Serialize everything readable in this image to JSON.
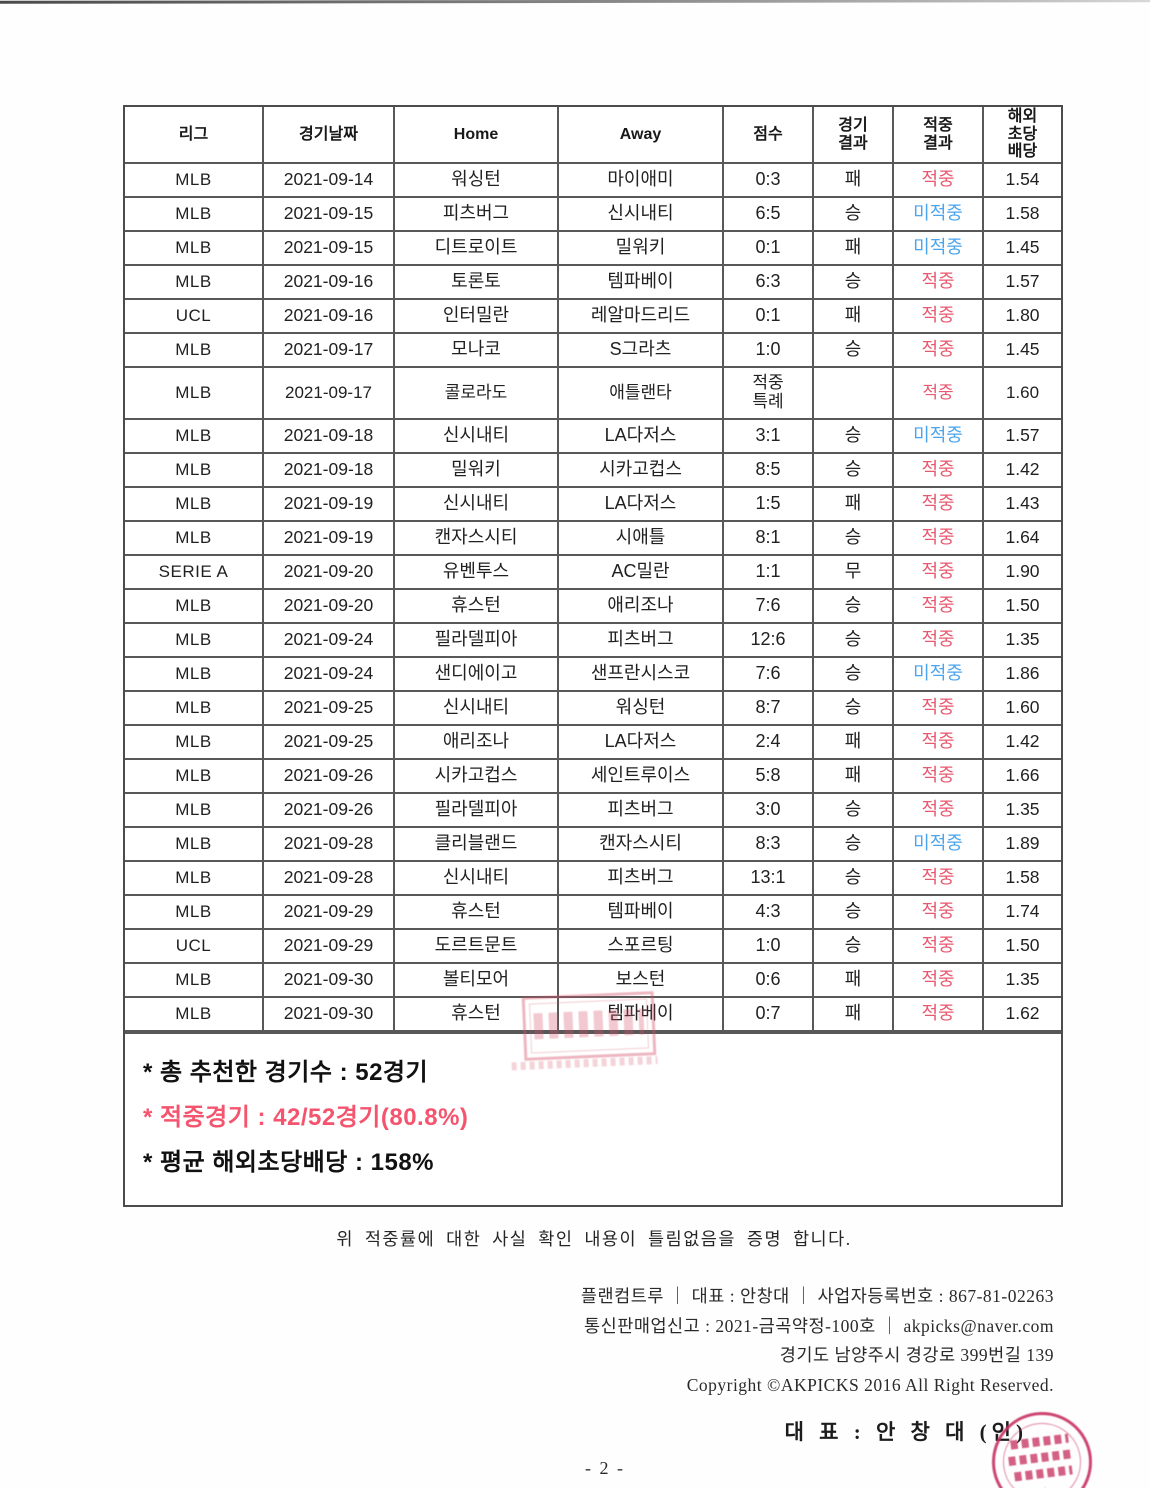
{
  "colors": {
    "hit": "#e8596f",
    "miss": "#4aa4ee",
    "summary_highlight": "#f4546e",
    "stamp": "#c73060"
  },
  "labels": {
    "hit": "적중",
    "miss": "미적중"
  },
  "table": {
    "headers": [
      "리그",
      "경기날짜",
      "Home",
      "Away",
      "점수",
      "경기\n결과",
      "적중\n결과",
      "해외\n초당\n배당"
    ],
    "rows": [
      {
        "league": "MLB",
        "date": "2021-09-14",
        "home": "워싱턴",
        "away": "마이애미",
        "score": "0:3",
        "result": "패",
        "hit": "적중",
        "odds": "1.54"
      },
      {
        "league": "MLB",
        "date": "2021-09-15",
        "home": "피츠버그",
        "away": "신시내티",
        "score": "6:5",
        "result": "승",
        "hit": "미적중",
        "odds": "1.58"
      },
      {
        "league": "MLB",
        "date": "2021-09-15",
        "home": "디트로이트",
        "away": "밀워키",
        "score": "0:1",
        "result": "패",
        "hit": "미적중",
        "odds": "1.45"
      },
      {
        "league": "MLB",
        "date": "2021-09-16",
        "home": "토론토",
        "away": "템파베이",
        "score": "6:3",
        "result": "승",
        "hit": "적중",
        "odds": "1.57"
      },
      {
        "league": "UCL",
        "date": "2021-09-16",
        "home": "인터밀란",
        "away": "레알마드리드",
        "score": "0:1",
        "result": "패",
        "hit": "적중",
        "odds": "1.80"
      },
      {
        "league": "MLB",
        "date": "2021-09-17",
        "home": "모나코",
        "away": "S그라츠",
        "score": "1:0",
        "result": "승",
        "hit": "적중",
        "odds": "1.45"
      },
      {
        "league": "MLB",
        "date": "2021-09-17",
        "home": "콜로라도",
        "away": "애틀랜타",
        "score": "적중\n특례",
        "result": "",
        "hit": "적중",
        "odds": "1.60"
      },
      {
        "league": "MLB",
        "date": "2021-09-18",
        "home": "신시내티",
        "away": "LA다저스",
        "score": "3:1",
        "result": "승",
        "hit": "미적중",
        "odds": "1.57"
      },
      {
        "league": "MLB",
        "date": "2021-09-18",
        "home": "밀워키",
        "away": "시카고컵스",
        "score": "8:5",
        "result": "승",
        "hit": "적중",
        "odds": "1.42"
      },
      {
        "league": "MLB",
        "date": "2021-09-19",
        "home": "신시내티",
        "away": "LA다저스",
        "score": "1:5",
        "result": "패",
        "hit": "적중",
        "odds": "1.43"
      },
      {
        "league": "MLB",
        "date": "2021-09-19",
        "home": "캔자스시티",
        "away": "시애틀",
        "score": "8:1",
        "result": "승",
        "hit": "적중",
        "odds": "1.64"
      },
      {
        "league": "SERIE A",
        "date": "2021-09-20",
        "home": "유벤투스",
        "away": "AC밀란",
        "score": "1:1",
        "result": "무",
        "hit": "적중",
        "odds": "1.90"
      },
      {
        "league": "MLB",
        "date": "2021-09-20",
        "home": "휴스턴",
        "away": "애리조나",
        "score": "7:6",
        "result": "승",
        "hit": "적중",
        "odds": "1.50"
      },
      {
        "league": "MLB",
        "date": "2021-09-24",
        "home": "필라델피아",
        "away": "피츠버그",
        "score": "12:6",
        "result": "승",
        "hit": "적중",
        "odds": "1.35"
      },
      {
        "league": "MLB",
        "date": "2021-09-24",
        "home": "샌디에이고",
        "away": "샌프란시스코",
        "score": "7:6",
        "result": "승",
        "hit": "미적중",
        "odds": "1.86"
      },
      {
        "league": "MLB",
        "date": "2021-09-25",
        "home": "신시내티",
        "away": "워싱턴",
        "score": "8:7",
        "result": "승",
        "hit": "적중",
        "odds": "1.60"
      },
      {
        "league": "MLB",
        "date": "2021-09-25",
        "home": "애리조나",
        "away": "LA다저스",
        "score": "2:4",
        "result": "패",
        "hit": "적중",
        "odds": "1.42"
      },
      {
        "league": "MLB",
        "date": "2021-09-26",
        "home": "시카고컵스",
        "away": "세인트루이스",
        "score": "5:8",
        "result": "패",
        "hit": "적중",
        "odds": "1.66"
      },
      {
        "league": "MLB",
        "date": "2021-09-26",
        "home": "필라델피아",
        "away": "피츠버그",
        "score": "3:0",
        "result": "승",
        "hit": "적중",
        "odds": "1.35"
      },
      {
        "league": "MLB",
        "date": "2021-09-28",
        "home": "클리블랜드",
        "away": "캔자스시티",
        "score": "8:3",
        "result": "승",
        "hit": "미적중",
        "odds": "1.89"
      },
      {
        "league": "MLB",
        "date": "2021-09-28",
        "home": "신시내티",
        "away": "피츠버그",
        "score": "13:1",
        "result": "승",
        "hit": "적중",
        "odds": "1.58"
      },
      {
        "league": "MLB",
        "date": "2021-09-29",
        "home": "휴스턴",
        "away": "템파베이",
        "score": "4:3",
        "result": "승",
        "hit": "적중",
        "odds": "1.74"
      },
      {
        "league": "UCL",
        "date": "2021-09-29",
        "home": "도르트문트",
        "away": "스포르팅",
        "score": "1:0",
        "result": "승",
        "hit": "적중",
        "odds": "1.50"
      },
      {
        "league": "MLB",
        "date": "2021-09-30",
        "home": "볼티모어",
        "away": "보스턴",
        "score": "0:6",
        "result": "패",
        "hit": "적중",
        "odds": "1.35"
      },
      {
        "league": "MLB",
        "date": "2021-09-30",
        "home": "휴스턴",
        "away": "템파베이",
        "score": "0:7",
        "result": "패",
        "hit": "적중",
        "odds": "1.62"
      }
    ]
  },
  "summary": {
    "line1": "* 총 추천한 경기수 : 52경기",
    "line2": "* 적중경기 : 42/52경기(80.8%)",
    "line3": "* 평균 해외초당배당 : 158%"
  },
  "certification": "위 적중률에 대한 사실 확인 내용이 틀림없음을 증명 합니다.",
  "company": {
    "line1": "플랜컴트루 ｜ 대표 : 안창대 ｜ 사업자등록번호 : 867-81-02263",
    "line2": "통신판매업신고 : 2021-금곡약정-100호 ｜ akpicks@naver.com",
    "line3": "경기도 남양주시 경강로 399번길 139",
    "line4": "Copyright ©AKPICKS 2016 All Right Reserved."
  },
  "signature": "대 표 : 안 창 대  (인)",
  "page_number": "- 2 -",
  "round_stamp_star": "★"
}
